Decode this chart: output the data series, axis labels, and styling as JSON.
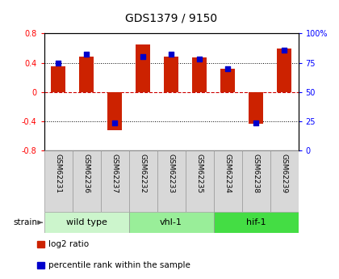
{
  "title": "GDS1379 / 9150",
  "samples": [
    "GSM62231",
    "GSM62236",
    "GSM62237",
    "GSM62232",
    "GSM62233",
    "GSM62235",
    "GSM62234",
    "GSM62238",
    "GSM62239"
  ],
  "log2_ratio": [
    0.35,
    0.48,
    -0.52,
    0.65,
    0.48,
    0.47,
    0.32,
    -0.43,
    0.6
  ],
  "percentile_rank": [
    75,
    82,
    24,
    80,
    82,
    78,
    70,
    24,
    86
  ],
  "groups": [
    {
      "label": "wild type",
      "start": 0,
      "end": 3,
      "color": "#ccf5cc"
    },
    {
      "label": "vhl-1",
      "start": 3,
      "end": 6,
      "color": "#99ee99"
    },
    {
      "label": "hif-1",
      "start": 6,
      "end": 9,
      "color": "#44dd44"
    }
  ],
  "ylim": [
    -0.8,
    0.8
  ],
  "yticks_left": [
    -0.8,
    -0.4,
    0.0,
    0.4,
    0.8
  ],
  "yticks_right": [
    0,
    25,
    50,
    75,
    100
  ],
  "bar_color": "#cc2200",
  "dot_color": "#0000cc",
  "bar_width": 0.5,
  "dot_size": 20,
  "background_color": "#ffffff",
  "sample_bg": "#d8d8d8",
  "legend_items": [
    {
      "label": "log2 ratio",
      "color": "#cc2200"
    },
    {
      "label": "percentile rank within the sample",
      "color": "#0000cc"
    }
  ]
}
